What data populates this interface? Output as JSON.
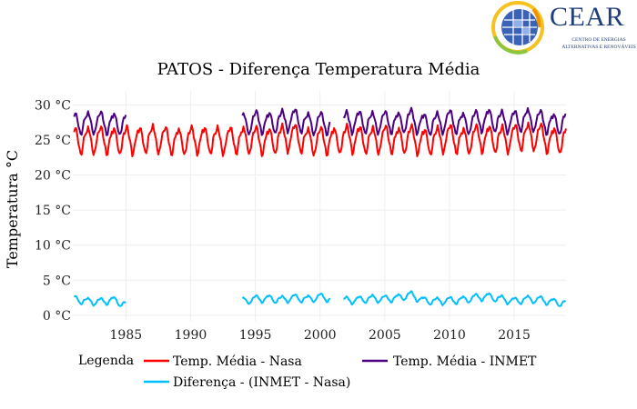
{
  "logo": {
    "name": "CEAR",
    "subtitle_line1": "CENTRO DE ENERGIAS",
    "subtitle_line2": "ALTERNATIVAS E RENOVÁVEIS",
    "colors": {
      "blue": "#1f3d7a",
      "green": "#8cc63f",
      "yellow": "#f6c220",
      "orange": "#f39200"
    }
  },
  "legend": {
    "title": "Legenda"
  },
  "colors": {
    "nasa": "#ff0000",
    "inmet": "#4b0082",
    "diff": "#00bfff",
    "grid": "#eeeeee",
    "axis_text": "#222222"
  },
  "chart_data": {
    "type": "line",
    "title": "PATOS - Diferença Temperatura Média",
    "xlabel": "",
    "ylabel": "Temperatura °C",
    "x_ticks": [
      1985,
      1990,
      1995,
      2000,
      2005,
      2010,
      2015
    ],
    "y_ticks": [
      "0 °C",
      "5 °C",
      "10 °C",
      "15 °C",
      "20 °C",
      "25 °C",
      "30 °C"
    ],
    "y_tick_values": [
      0,
      5,
      10,
      15,
      20,
      25,
      30
    ],
    "xlim": [
      1980.9,
      2019.0
    ],
    "ylim": [
      -0.8,
      32
    ],
    "grid": true,
    "legend_position": "bottom",
    "series": [
      {
        "name": "Temp. Média - Nasa",
        "key": "nasa",
        "segments": [
          [
            1981.0,
            2019.0
          ]
        ],
        "baseline": 25.2,
        "amplitude": 2.2,
        "points": [
          [
            1981.0,
            25.0
          ],
          [
            1982.0,
            25.0
          ],
          [
            1983.0,
            25.0
          ],
          [
            1984.0,
            25.0
          ],
          [
            1985.0,
            25.0
          ],
          [
            1986.0,
            25.0
          ],
          [
            1987.0,
            25.3
          ],
          [
            1988.0,
            25.0
          ],
          [
            1989.0,
            24.9
          ],
          [
            1990.0,
            25.0
          ],
          [
            1991.0,
            25.1
          ],
          [
            1992.0,
            25.0
          ],
          [
            1993.0,
            25.0
          ],
          [
            1994.0,
            25.1
          ],
          [
            1995.0,
            25.0
          ],
          [
            1996.0,
            24.9
          ],
          [
            1997.0,
            25.2
          ],
          [
            1998.0,
            25.5
          ],
          [
            1999.0,
            24.9
          ],
          [
            2000.0,
            24.9
          ],
          [
            2001.0,
            25.0
          ],
          [
            2002.0,
            25.2
          ],
          [
            2003.0,
            25.2
          ],
          [
            2004.0,
            25.0
          ],
          [
            2005.0,
            25.2
          ],
          [
            2006.0,
            25.0
          ],
          [
            2007.0,
            25.2
          ],
          [
            2008.0,
            24.8
          ],
          [
            2009.0,
            25.0
          ],
          [
            2010.0,
            25.4
          ],
          [
            2011.0,
            24.9
          ],
          [
            2012.0,
            25.2
          ],
          [
            2013.0,
            25.3
          ],
          [
            2014.0,
            25.1
          ],
          [
            2015.0,
            25.4
          ],
          [
            2016.0,
            25.6
          ],
          [
            2017.0,
            25.4
          ],
          [
            2018.0,
            25.0
          ],
          [
            2019.0,
            25.2
          ]
        ]
      },
      {
        "name": "Temp. Média - INMET",
        "key": "inmet",
        "segments": [
          [
            1981.0,
            1985.0
          ],
          [
            1994.0,
            2000.8
          ],
          [
            2001.8,
            2019.0
          ]
        ],
        "baseline": 27.6,
        "amplitude": 1.8,
        "points": [
          [
            1981.0,
            27.4
          ],
          [
            1982.0,
            27.5
          ],
          [
            1983.0,
            27.5
          ],
          [
            1984.0,
            27.4
          ],
          [
            1985.0,
            27.4
          ],
          [
            1994.0,
            27.3
          ],
          [
            1995.0,
            27.6
          ],
          [
            1996.0,
            27.5
          ],
          [
            1997.0,
            27.7
          ],
          [
            1998.0,
            28.0
          ],
          [
            1999.0,
            27.4
          ],
          [
            2000.0,
            27.4
          ],
          [
            2001.8,
            27.5
          ],
          [
            2003.0,
            27.7
          ],
          [
            2004.0,
            27.5
          ],
          [
            2005.0,
            27.6
          ],
          [
            2006.0,
            27.5
          ],
          [
            2007.0,
            27.9
          ],
          [
            2008.0,
            27.3
          ],
          [
            2009.0,
            27.4
          ],
          [
            2010.0,
            27.8
          ],
          [
            2011.0,
            27.4
          ],
          [
            2012.0,
            27.6
          ],
          [
            2013.0,
            28.0
          ],
          [
            2014.0,
            27.6
          ],
          [
            2015.0,
            27.7
          ],
          [
            2016.0,
            28.0
          ],
          [
            2017.0,
            27.7
          ],
          [
            2018.0,
            27.3
          ],
          [
            2019.0,
            27.6
          ]
        ]
      },
      {
        "name": "Diferença - (INMET - Nasa)",
        "key": "diff",
        "segments": [
          [
            1981.0,
            1985.0
          ],
          [
            1994.0,
            2000.8
          ],
          [
            2001.8,
            2019.0
          ]
        ],
        "baseline": 2.1,
        "amplitude": 0.6,
        "points": [
          [
            1981.0,
            2.3
          ],
          [
            1982.0,
            2.0
          ],
          [
            1983.0,
            1.9
          ],
          [
            1984.0,
            2.2
          ],
          [
            1985.0,
            1.5
          ],
          [
            1994.0,
            2.0
          ],
          [
            1995.0,
            2.3
          ],
          [
            1996.0,
            2.4
          ],
          [
            1997.0,
            2.2
          ],
          [
            1998.0,
            2.5
          ],
          [
            1999.0,
            2.3
          ],
          [
            2000.0,
            2.6
          ],
          [
            2001.8,
            2.1
          ],
          [
            2003.0,
            2.2
          ],
          [
            2004.0,
            2.4
          ],
          [
            2005.0,
            2.3
          ],
          [
            2006.0,
            2.5
          ],
          [
            2007.0,
            2.9
          ],
          [
            2008.0,
            2.1
          ],
          [
            2009.0,
            2.0
          ],
          [
            2010.0,
            2.1
          ],
          [
            2011.0,
            2.2
          ],
          [
            2012.0,
            2.5
          ],
          [
            2013.0,
            2.7
          ],
          [
            2014.0,
            2.3
          ],
          [
            2015.0,
            2.0
          ],
          [
            2016.0,
            2.3
          ],
          [
            2017.0,
            2.2
          ],
          [
            2018.0,
            1.9
          ],
          [
            2019.0,
            1.7
          ]
        ]
      }
    ]
  }
}
